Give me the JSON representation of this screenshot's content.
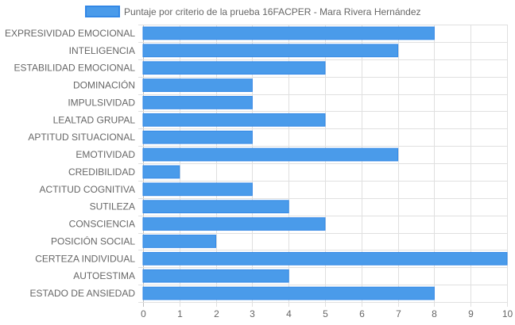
{
  "chart_data": {
    "type": "bar",
    "orientation": "horizontal",
    "legend": {
      "label": "Puntaje por criterio de la prueba 16FACPER - Mara Rivera Hernández",
      "position": "top-center"
    },
    "categories": [
      "EXPRESIVIDAD EMOCIONAL",
      "INTELIGENCIA",
      "ESTABILIDAD EMOCIONAL",
      "DOMINACIÓN",
      "IMPULSIVIDAD",
      "LEALTAD GRUPAL",
      "APTITUD SITUACIONAL",
      "EMOTIVIDAD",
      "CREDIBILIDAD",
      "ACTITUD COGNITIVA",
      "SUTILEZA",
      "CONSCIENCIA",
      "POSICIÓN SOCIAL",
      "CERTEZA INDIVIDUAL",
      "AUTOESTIMA",
      "ESTADO DE ANSIEDAD"
    ],
    "series": [
      {
        "name": "Puntaje por criterio de la prueba 16FACPER - Mara Rivera Hernández",
        "values": [
          8,
          7,
          5,
          3,
          3,
          5,
          3,
          7,
          1,
          3,
          4,
          5,
          2,
          10,
          4,
          8
        ]
      }
    ],
    "xlim": [
      0,
      10
    ],
    "xticks": [
      "0",
      "1",
      "2",
      "3",
      "4",
      "5",
      "6",
      "7",
      "8",
      "9",
      "10"
    ],
    "grid": true,
    "colors": {
      "bar_fill": "#4a9bea",
      "bar_stroke": "#3388e6",
      "grid": "#e0e0e0",
      "text": "#666666"
    }
  }
}
